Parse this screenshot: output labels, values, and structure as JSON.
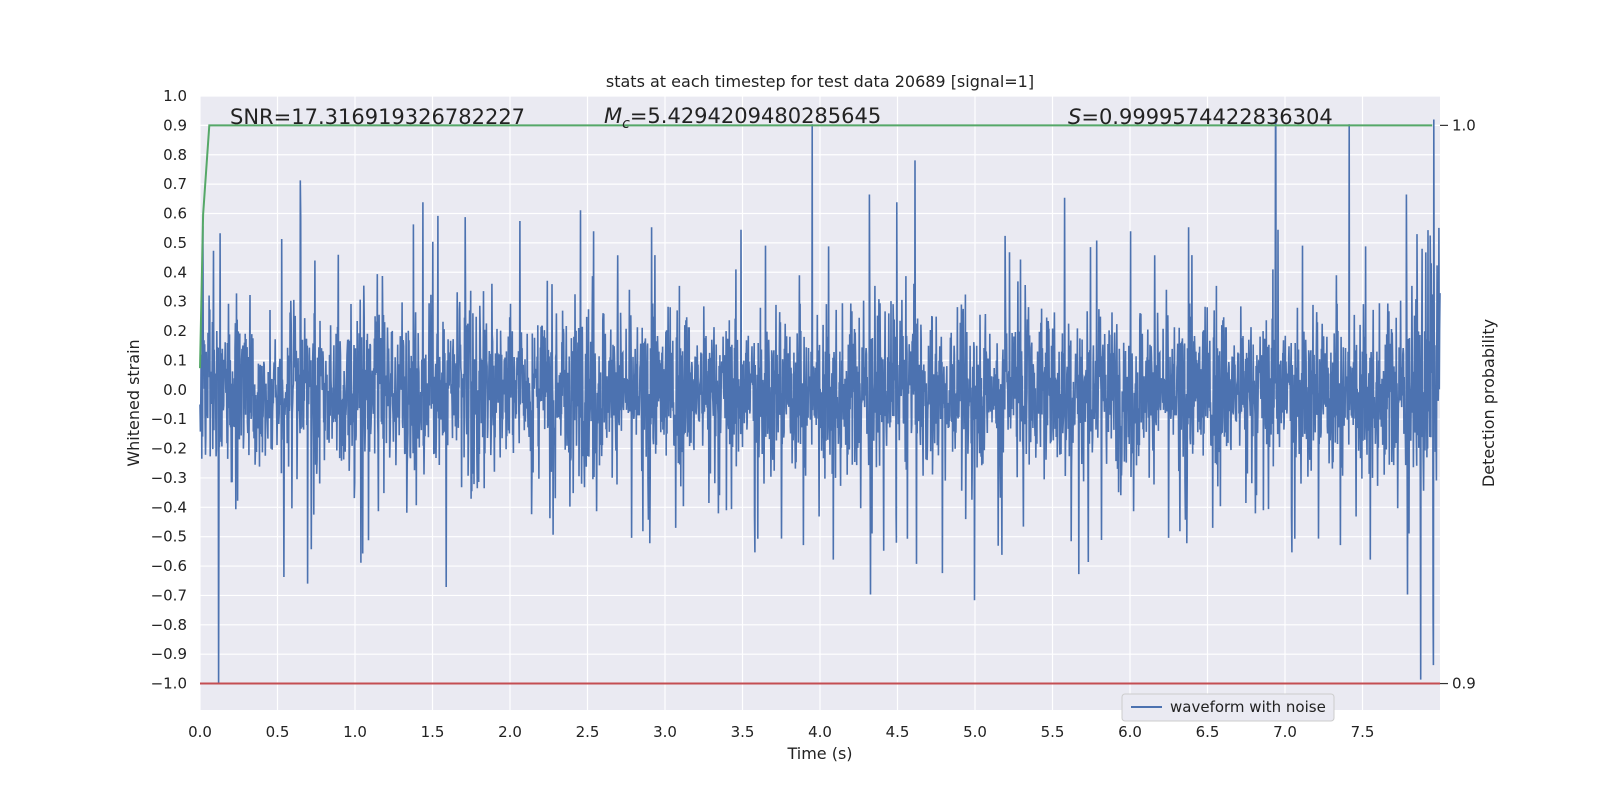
{
  "chart_data": {
    "type": "line",
    "title": "stats at each timestep for test data 20689 [signal=1]",
    "xlabel": "Time (s)",
    "ylabel": "Whitened strain",
    "ylabel_right": "Detection probability",
    "xlim": [
      0.0,
      8.0
    ],
    "ylim": [
      -1.09,
      1.0
    ],
    "ylim_right": [
      0.9,
      1.0
    ],
    "x_ticks": [
      "0.0",
      "0.5",
      "1.0",
      "1.5",
      "2.0",
      "2.5",
      "3.0",
      "3.5",
      "4.0",
      "4.5",
      "5.0",
      "5.5",
      "6.0",
      "6.5",
      "7.0",
      "7.5"
    ],
    "x_tick_values": [
      0.0,
      0.5,
      1.0,
      1.5,
      2.0,
      2.5,
      3.0,
      3.5,
      4.0,
      4.5,
      5.0,
      5.5,
      6.0,
      6.5,
      7.0,
      7.5
    ],
    "y_ticks": [
      "1.0",
      "0.9",
      "0.8",
      "0.7",
      "0.6",
      "0.5",
      "0.4",
      "0.3",
      "0.2",
      "0.1",
      "0.0",
      "−0.1",
      "−0.2",
      "−0.3",
      "−0.4",
      "−0.5",
      "−0.6",
      "−0.7",
      "−0.8",
      "−0.9",
      "−1.0"
    ],
    "y_tick_values": [
      1.0,
      0.9,
      0.8,
      0.7,
      0.6,
      0.5,
      0.4,
      0.3,
      0.2,
      0.1,
      0.0,
      -0.1,
      -0.2,
      -0.3,
      -0.4,
      -0.5,
      -0.6,
      -0.7,
      -0.8,
      -0.9,
      -1.0
    ],
    "y_ticks_right": [
      "1.0",
      "0.9"
    ],
    "y_tick_values_right": [
      1.0,
      0.9
    ],
    "grid": true,
    "legend_position": "lower-center-right",
    "annotations": {
      "snr": "SNR=17.316919326782227",
      "mc_symbol": "M",
      "mc_sub": "c",
      "mc_value": "=5.4294209480285645",
      "s_symbol": "S",
      "s_value": "=0.9999574422836304"
    },
    "series": [
      {
        "name": "waveform with noise",
        "color": "#4c72b0",
        "x_range": [
          0.0,
          8.0
        ],
        "typical_envelope": [
          -0.35,
          0.35
        ],
        "peak_max": 0.92,
        "peak_min": -1.0,
        "peak_max_time": 6.94,
        "peak_min_time": 0.12
      },
      {
        "color": "#55a868",
        "axis": "right",
        "x": [
          0.0,
          0.02,
          0.06,
          7.95
        ],
        "y": [
          0.9565,
          0.984,
          1.0,
          1.0
        ]
      },
      {
        "color": "#c44e52",
        "axis": "left",
        "x": [
          0.0,
          8.0
        ],
        "y": [
          -1.0,
          -1.0
        ]
      }
    ]
  }
}
